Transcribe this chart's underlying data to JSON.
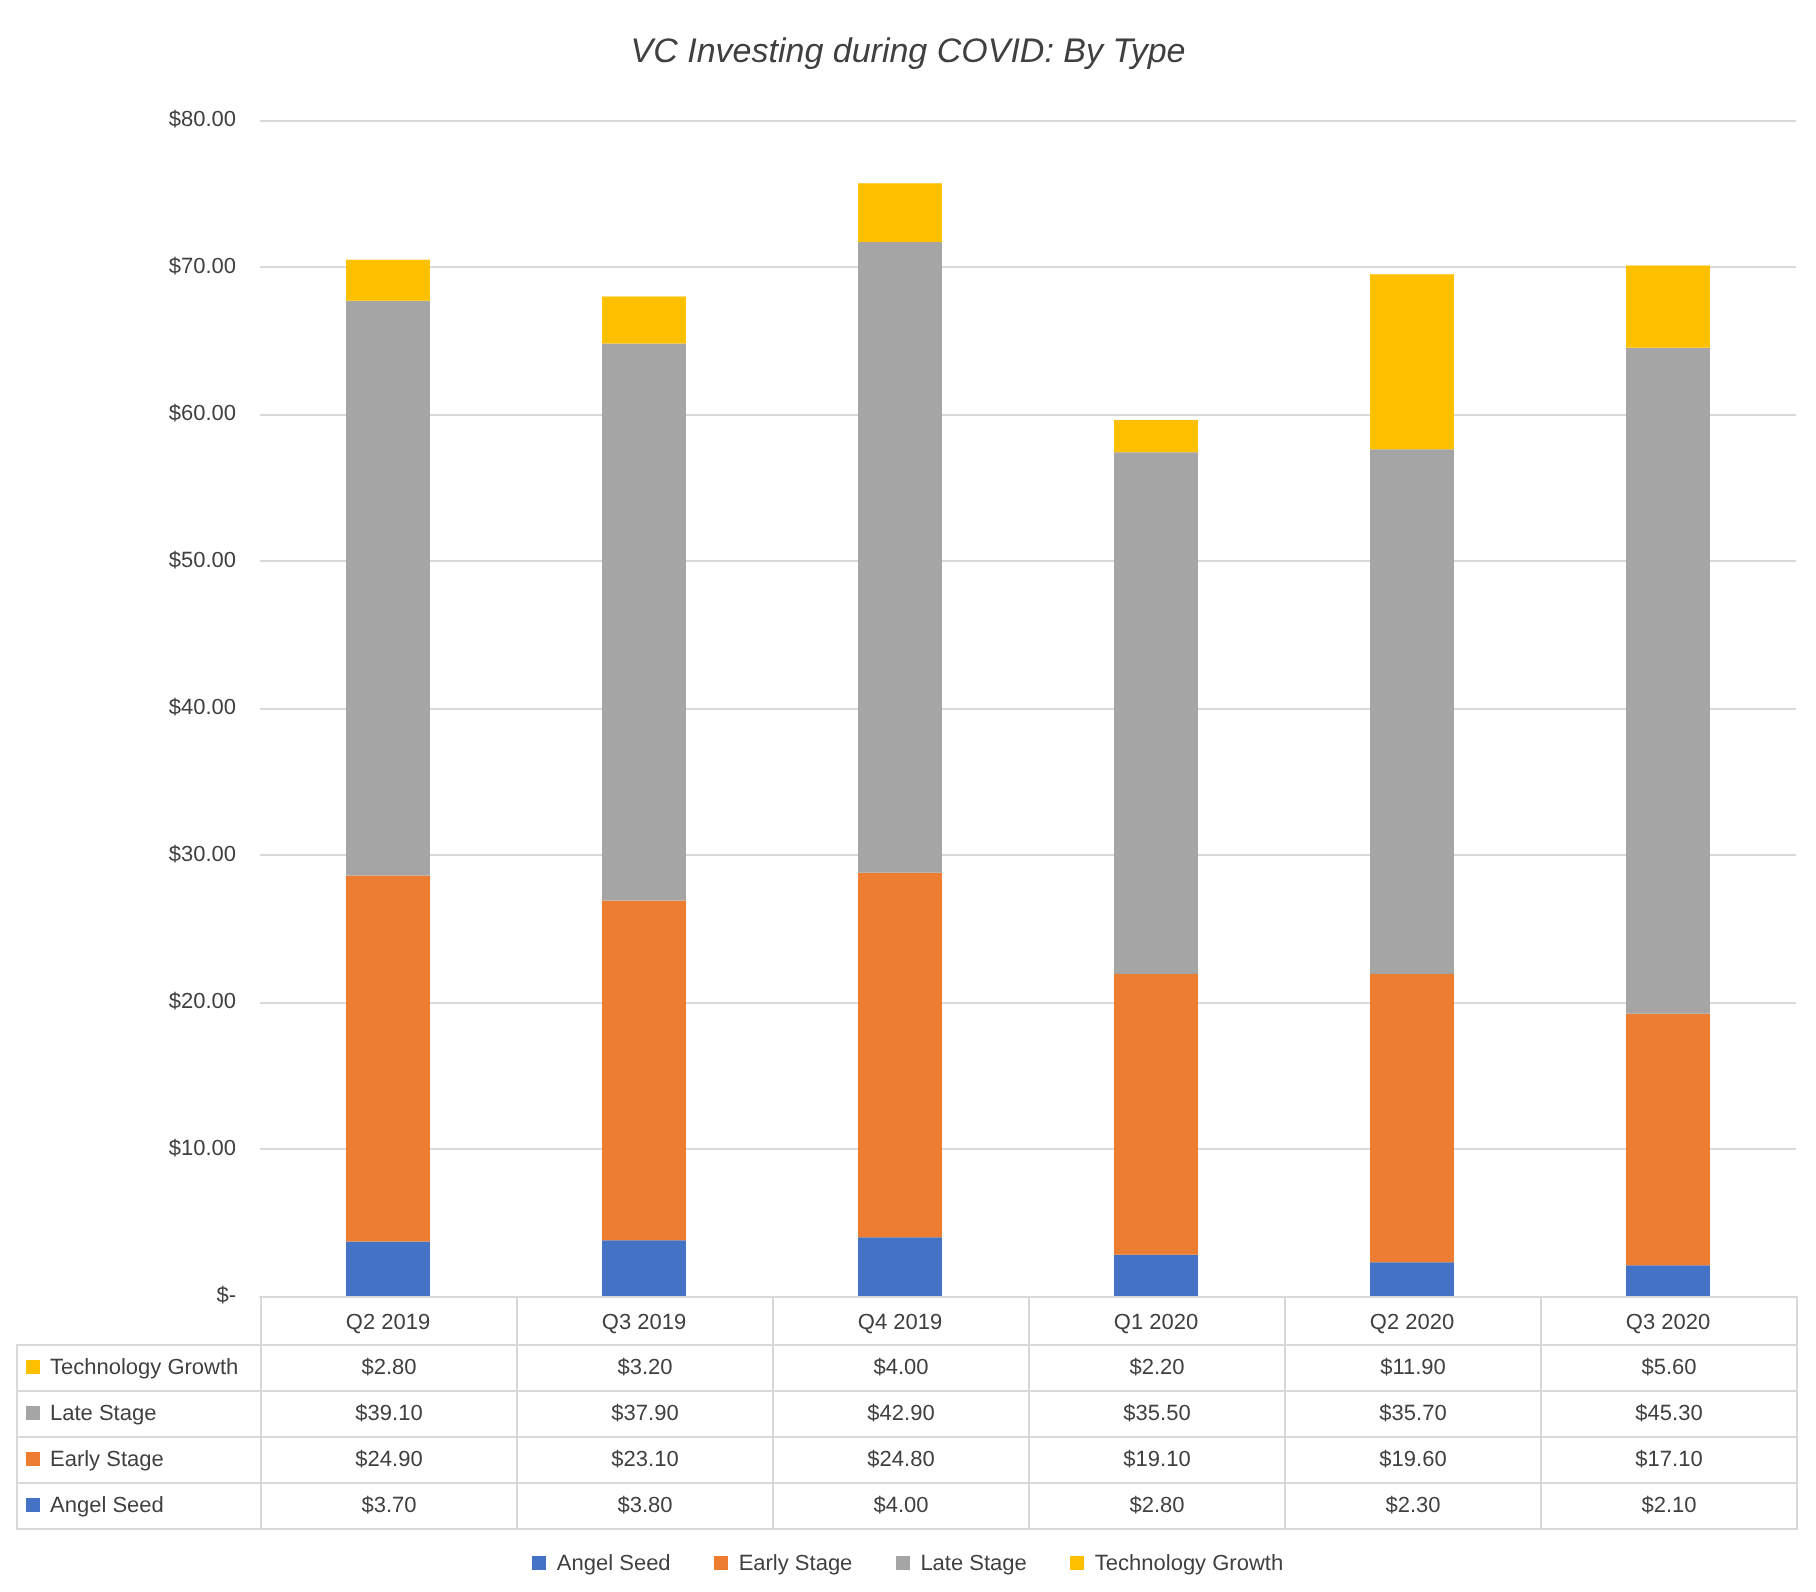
{
  "chart_data": {
    "type": "bar",
    "title": "VC Investing during COVID: By Type",
    "stacked": true,
    "categories": [
      "Q2 2019",
      "Q3 2019",
      "Q4 2019",
      "Q1 2020",
      "Q2 2020",
      "Q3 2020"
    ],
    "series": [
      {
        "name": "Angel Seed",
        "color": "#4472c4",
        "values": [
          3.7,
          3.8,
          4.0,
          2.8,
          2.3,
          2.1
        ],
        "value_labels": [
          "$3.70",
          "$3.80",
          "$4.00",
          "$2.80",
          "$2.30",
          "$2.10"
        ]
      },
      {
        "name": "Early Stage",
        "color": "#ed7d31",
        "values": [
          24.9,
          23.1,
          24.8,
          19.1,
          19.6,
          17.1
        ],
        "value_labels": [
          "$24.90",
          "$23.10",
          "$24.80",
          "$19.10",
          "$19.60",
          "$17.10"
        ]
      },
      {
        "name": "Late Stage",
        "color": "#a5a5a5",
        "values": [
          39.1,
          37.9,
          42.9,
          35.5,
          35.7,
          45.3
        ],
        "value_labels": [
          "$39.10",
          "$37.90",
          "$42.90",
          "$35.50",
          "$35.70",
          "$45.30"
        ]
      },
      {
        "name": "Technology Growth",
        "color": "#ffc000",
        "values": [
          2.8,
          3.2,
          4.0,
          2.2,
          11.9,
          5.6
        ],
        "value_labels": [
          "$2.80",
          "$3.20",
          "$4.00",
          "$2.20",
          "$11.90",
          "$5.60"
        ]
      }
    ],
    "ylim": [
      0,
      80
    ],
    "yticks": [
      {
        "value": 0,
        "label": "$-"
      },
      {
        "value": 10,
        "label": "$10.00"
      },
      {
        "value": 20,
        "label": "$20.00"
      },
      {
        "value": 30,
        "label": "$30.00"
      },
      {
        "value": 40,
        "label": "$40.00"
      },
      {
        "value": 50,
        "label": "$50.00"
      },
      {
        "value": 60,
        "label": "$60.00"
      },
      {
        "value": 70,
        "label": "$70.00"
      },
      {
        "value": 80,
        "label": "$80.00"
      }
    ],
    "grid": "y",
    "legend": "bottom"
  }
}
